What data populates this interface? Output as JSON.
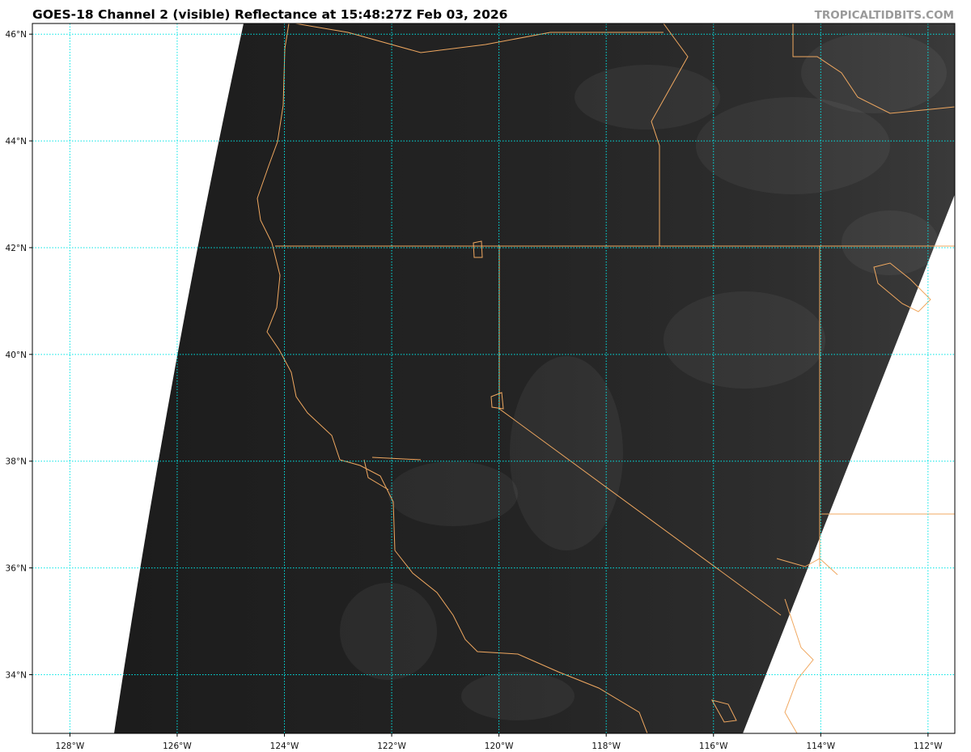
{
  "title": "GOES-18 Channel 2 (visible) Reflectance at 15:48:27Z Feb 03, 2026",
  "watermark": "TROPICALTIDBITS.COM",
  "map": {
    "projection": "lat-lon",
    "extent": {
      "lon": [
        -128.7,
        -111.5
      ],
      "lat": [
        32.9,
        46.2
      ]
    },
    "longitude_labels": [
      "128°W",
      "126°W",
      "124°W",
      "122°W",
      "120°W",
      "118°W",
      "116°W",
      "114°W",
      "112°W"
    ],
    "latitude_labels": [
      "46°N",
      "44°N",
      "42°N",
      "40°N",
      "38°N",
      "36°N",
      "34°N"
    ],
    "gridline_style": "dotted",
    "colors": {
      "gridlines": "#00e5e5",
      "borders": "#f0a860",
      "imagery_background": "#1e1e1e",
      "no_data": "#ffffff"
    }
  }
}
